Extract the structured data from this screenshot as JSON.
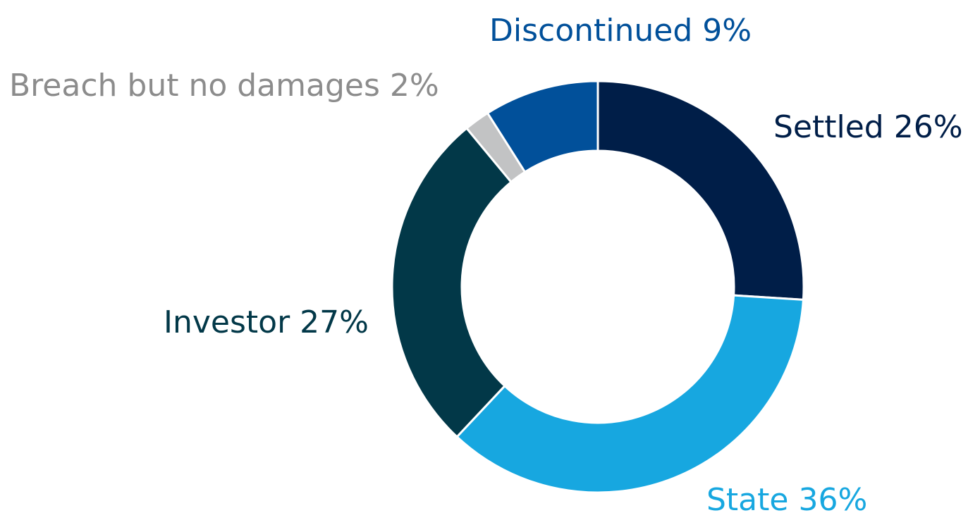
{
  "chart_data": {
    "type": "pie",
    "variant": "donut",
    "legend": "none",
    "start_angle_deg": 0,
    "direction": "clockwise",
    "slices": [
      {
        "label": "Settled 26%",
        "value": 26,
        "color": "#001E48",
        "label_color": "#001E48"
      },
      {
        "label": "State 36%",
        "value": 36,
        "color": "#17A7E0",
        "label_color": "#17A7E0"
      },
      {
        "label": "Investor 27%",
        "value": 27,
        "color": "#023848",
        "label_color": "#023848"
      },
      {
        "label": "Breach but no damages 2%",
        "value": 2,
        "color": "#C2C3C4",
        "label_color": "#8C8C8C"
      },
      {
        "label": "Discontinued 9%",
        "value": 9,
        "color": "#01509A",
        "label_color": "#01509A"
      }
    ]
  }
}
